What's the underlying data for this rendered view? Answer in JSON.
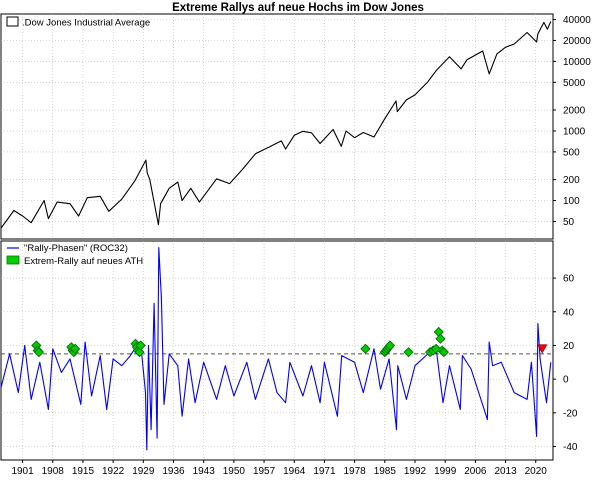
{
  "chart_data": [
    {
      "type": "line",
      "title": "Extreme Rallys auf neue Hochs im Dow Jones",
      "yscale": "log",
      "ylim": [
        28,
        48000
      ],
      "xlim": [
        1896,
        2024
      ],
      "yticks": [
        40000,
        20000,
        10000,
        5000,
        2000,
        1000,
        500,
        200,
        100,
        50
      ],
      "ytick_labels": [
        "40000",
        "20000",
        "10000",
        "5000",
        "2000",
        "1000",
        "500",
        "200",
        "100",
        "50"
      ],
      "grid": true,
      "legend_position": "top-left",
      "series": [
        {
          "name": ".Dow Jones Industrial Average",
          "color": "#000000",
          "x": [
            1896,
            1899,
            1901,
            1903,
            1906,
            1907,
            1909,
            1912,
            1914,
            1916,
            1919,
            1921,
            1924,
            1927,
            1929.6,
            1929.9,
            1930.5,
            1932.5,
            1933,
            1935,
            1937,
            1938,
            1940,
            1942,
            1946,
            1949,
            1952,
            1955,
            1958,
            1961,
            1962,
            1964,
            1966,
            1968,
            1970,
            1973,
            1974.9,
            1976,
            1978,
            1980,
            1982.5,
            1985,
            1987.6,
            1987.9,
            1990,
            1992,
            1995,
            1997,
            2000,
            2002.7,
            2004,
            2007.7,
            2009.2,
            2011,
            2013,
            2015,
            2018,
            2020.2,
            2020.5,
            2021.9,
            2022.7,
            2023.5
          ],
          "y": [
            40,
            72,
            60,
            48,
            100,
            55,
            95,
            90,
            60,
            110,
            115,
            70,
            105,
            190,
            381,
            250,
            200,
            45,
            90,
            150,
            185,
            100,
            150,
            95,
            205,
            175,
            280,
            470,
            580,
            720,
            550,
            870,
            990,
            940,
            660,
            1050,
            600,
            1000,
            800,
            950,
            820,
            1500,
            2700,
            1900,
            2800,
            3300,
            5100,
            7500,
            11700,
            7800,
            10500,
            14100,
            6600,
            12800,
            16000,
            17800,
            26000,
            19000,
            25000,
            36300,
            29000,
            37500
          ]
        }
      ]
    },
    {
      "type": "line",
      "ylim": [
        -48,
        82
      ],
      "xlim": [
        1896,
        2024
      ],
      "yticks": [
        60,
        40,
        20,
        0,
        -20,
        -40
      ],
      "ytick_labels": [
        "60",
        "40",
        "20",
        "0",
        "-20",
        "-40"
      ],
      "x_tick_labels": [
        "1901",
        "1908",
        "1915",
        "1922",
        "1929",
        "1936",
        "1943",
        "1950",
        "1957",
        "1964",
        "1971",
        "1978",
        "1985",
        "1992",
        "1999",
        "2006",
        "2013",
        "2020"
      ],
      "threshold": 15,
      "grid": true,
      "legend_position": "top-left",
      "series": [
        {
          "name": "\"Rally-Phasen\" (ROC32)",
          "color": "#0000ff",
          "x": [
            1896,
            1898,
            1900,
            1901.5,
            1903,
            1905,
            1907,
            1908,
            1910,
            1912,
            1914.5,
            1915.5,
            1917,
            1919,
            1920.5,
            1922,
            1924,
            1926,
            1927.5,
            1928.5,
            1929.5,
            1929.8,
            1930.2,
            1930.8,
            1931.5,
            1932.2,
            1932.6,
            1933.2,
            1933.8,
            1935,
            1937,
            1938,
            1939.5,
            1941,
            1943,
            1946,
            1948,
            1950,
            1953,
            1955,
            1958,
            1960,
            1962,
            1963,
            1966,
            1968,
            1970,
            1971,
            1974,
            1975,
            1978,
            1980,
            1982.5,
            1984,
            1986,
            1987.7,
            1988,
            1990,
            1992,
            1995,
            1997,
            1998.5,
            2000,
            2002.5,
            2003,
            2005,
            2008.8,
            2009.2,
            2010,
            2012,
            2015,
            2018,
            2019,
            2020.2,
            2020.5,
            2021,
            2022.5,
            2023.5
          ],
          "y": [
            -5,
            15,
            -8,
            20,
            -12,
            10,
            -18,
            18,
            4,
            12,
            -15,
            22,
            -10,
            14,
            -18,
            12,
            8,
            14,
            20,
            18,
            -8,
            -42,
            20,
            -30,
            45,
            -35,
            78,
            48,
            -15,
            15,
            8,
            -22,
            12,
            -14,
            10,
            -12,
            8,
            -10,
            10,
            -12,
            12,
            -8,
            -14,
            10,
            -10,
            8,
            -14,
            10,
            -22,
            14,
            10,
            -8,
            18,
            -6,
            12,
            -30,
            8,
            -12,
            8,
            15,
            16,
            -14,
            8,
            -18,
            14,
            6,
            -24,
            22,
            8,
            10,
            -8,
            -12,
            10,
            -34,
            33,
            12,
            -14,
            10
          ]
        }
      ],
      "markers": {
        "name": "Extrem-Rally auf neues ATH",
        "color": "#00cc00",
        "points": [
          {
            "x": 1904.2,
            "y": 20
          },
          {
            "x": 1904.5,
            "y": 17
          },
          {
            "x": 1904.8,
            "y": 16
          },
          {
            "x": 1912.3,
            "y": 19
          },
          {
            "x": 1912.6,
            "y": 17
          },
          {
            "x": 1912.9,
            "y": 16
          },
          {
            "x": 1913.2,
            "y": 18
          },
          {
            "x": 1927.2,
            "y": 21
          },
          {
            "x": 1927.5,
            "y": 19
          },
          {
            "x": 1927.8,
            "y": 17
          },
          {
            "x": 1928.1,
            "y": 16
          },
          {
            "x": 1928.4,
            "y": 20
          },
          {
            "x": 1980.5,
            "y": 18
          },
          {
            "x": 1985.0,
            "y": 16
          },
          {
            "x": 1985.3,
            "y": 17
          },
          {
            "x": 1985.6,
            "y": 18
          },
          {
            "x": 1985.9,
            "y": 19
          },
          {
            "x": 1986.2,
            "y": 20
          },
          {
            "x": 1990.5,
            "y": 16
          },
          {
            "x": 1995.5,
            "y": 16
          },
          {
            "x": 1996.2,
            "y": 17
          },
          {
            "x": 1996.9,
            "y": 18
          },
          {
            "x": 1997.5,
            "y": 28
          },
          {
            "x": 1997.9,
            "y": 24
          },
          {
            "x": 1998.3,
            "y": 17
          },
          {
            "x": 1998.7,
            "y": 16
          }
        ]
      },
      "end_marker": {
        "x": 2021.5,
        "y": 18,
        "color": "#ff0000"
      }
    }
  ]
}
